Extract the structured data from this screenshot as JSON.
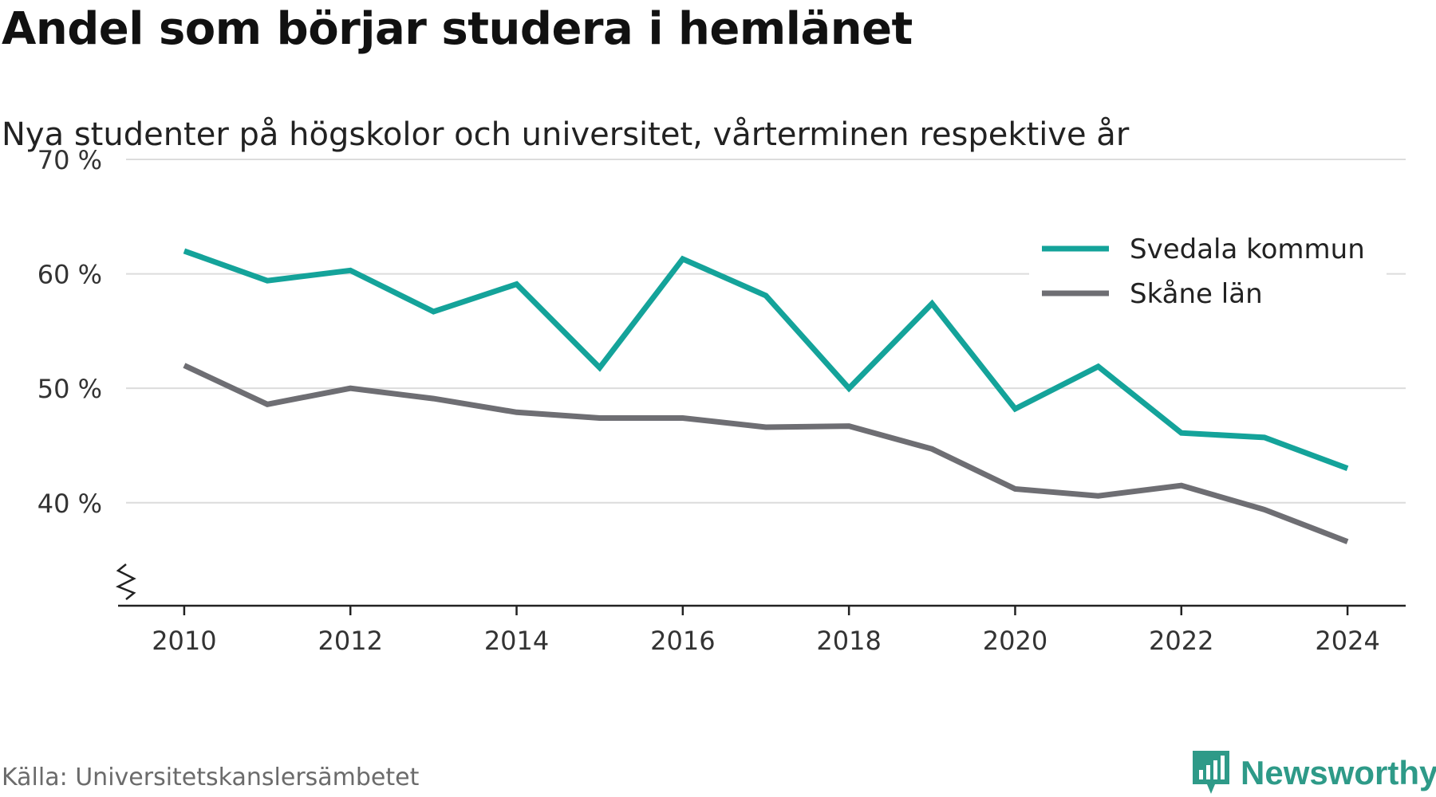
{
  "title": "Andel som börjar studera i hemlänet",
  "subtitle": "Nya studenter på högskolor och universitet, vårterminen respektive år",
  "source": "Källa: Universitetskanslersämbetet",
  "brand": {
    "name": "Newsworthy",
    "icon": "newsworthy-logo-icon",
    "color": "#2e9a88"
  },
  "chart_data": {
    "type": "line",
    "x": [
      2010,
      2011,
      2012,
      2013,
      2014,
      2015,
      2016,
      2017,
      2018,
      2019,
      2020,
      2021,
      2022,
      2023,
      2024
    ],
    "series": [
      {
        "name": "Svedala kommun",
        "color": "#14a39a",
        "values": [
          62.0,
          59.4,
          60.3,
          56.7,
          59.1,
          51.8,
          61.3,
          58.1,
          50.0,
          57.4,
          48.2,
          51.9,
          46.1,
          45.7,
          43.0
        ]
      },
      {
        "name": "Skåne län",
        "color": "#6e6e73",
        "values": [
          52.0,
          48.6,
          50.0,
          49.1,
          47.9,
          47.4,
          47.4,
          46.6,
          46.7,
          44.7,
          41.2,
          40.6,
          41.5,
          39.4,
          36.6
        ]
      }
    ],
    "xticks": [
      2010,
      2012,
      2014,
      2016,
      2018,
      2020,
      2022,
      2024
    ],
    "xtick_labels": [
      "2010",
      "2012",
      "2014",
      "2016",
      "2018",
      "2020",
      "2022",
      "2024"
    ],
    "yticks": [
      40,
      50,
      60,
      70
    ],
    "ytick_labels": [
      "40 %",
      "50 %",
      "60 %",
      "70 %"
    ],
    "ylim": [
      31,
      70
    ],
    "xlim": [
      2009.3,
      2024.7
    ],
    "y_axis_break": true,
    "grid": "horizontal",
    "legend_position": "top-right"
  }
}
